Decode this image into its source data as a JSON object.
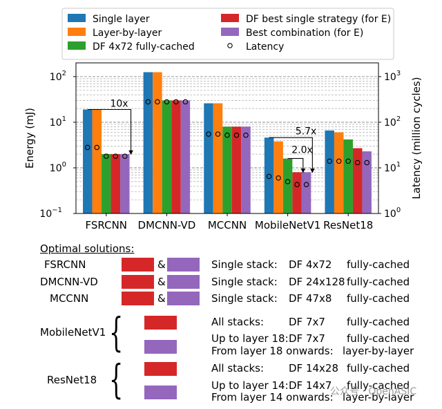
{
  "colors": {
    "single_layer": "#1f77b4",
    "layer_by_layer": "#ff7f0e",
    "df_fully_cached": "#2ca02c",
    "df_best_single": "#d62728",
    "best_combination": "#9467bd"
  },
  "chart_data": {
    "type": "bar",
    "title": "",
    "xlabel": "",
    "ylabel": "Energy (mJ)",
    "ylabel_right": "Latency (million cycles)",
    "yscale": "log",
    "ylim": [
      0.1,
      200
    ],
    "ylim_right": [
      1,
      2000
    ],
    "yticks": [
      "10^-1",
      "10^0",
      "10^1",
      "10^2"
    ],
    "yticks_right": [
      "10^0",
      "10^1",
      "10^2",
      "10^3"
    ],
    "categories": [
      "FSRCNN",
      "DMCNN-VD",
      "MCCNN",
      "MobileNetV1",
      "ResNet18"
    ],
    "series": [
      {
        "name": "Single layer",
        "color_key": "single_layer",
        "values": [
          19,
          125,
          26,
          4.6,
          6.6
        ]
      },
      {
        "name": "Layer-by-layer",
        "color_key": "layer_by_layer",
        "values": [
          19,
          125,
          26,
          3.8,
          6.0
        ]
      },
      {
        "name": "DF 4x72 fully-cached",
        "color_key": "df_fully_cached",
        "values": [
          2.0,
          30,
          8.0,
          1.6,
          4.2
        ]
      },
      {
        "name": "DF best single strategy (for E)",
        "color_key": "df_best_single",
        "values": [
          2.0,
          30,
          8.0,
          0.8,
          2.7
        ]
      },
      {
        "name": "Best combination (for E)",
        "color_key": "best_combination",
        "values": [
          2.0,
          30,
          8.0,
          0.8,
          2.3
        ]
      }
    ],
    "latency": {
      "name": "Latency",
      "values": [
        [
          28,
          28,
          18,
          18,
          18
        ],
        [
          280,
          280,
          280,
          280,
          280
        ],
        [
          55,
          55,
          52,
          52,
          52
        ],
        [
          6.5,
          6.0,
          5.0,
          4.3,
          4.3
        ],
        [
          14,
          14,
          14,
          13,
          13
        ]
      ]
    },
    "annotations": [
      {
        "text": "10x",
        "category": "FSRCNN"
      },
      {
        "text": "5.7x",
        "category": "MobileNetV1"
      },
      {
        "text": "2.0x",
        "category": "MobileNetV1"
      }
    ]
  },
  "optimal": {
    "heading": "Optimal solutions:",
    "amp": "&",
    "rows": [
      {
        "network": "FSRCNN",
        "label": "Single stack:",
        "tiling": "DF 4x72",
        "mode": "fully-cached"
      },
      {
        "network": "DMCNN-VD",
        "label": "Single stack:",
        "tiling": "DF 24x128",
        "mode": "fully-cached"
      },
      {
        "network": "MCCNN",
        "label": "Single stack:",
        "tiling": "DF 47x8",
        "mode": "fully-cached"
      }
    ],
    "mobilenet": {
      "network": "MobileNetV1",
      "l1": "All stacks:",
      "t1": "DF 7x7",
      "m1": "fully-cached",
      "l2": "Up to layer 18:",
      "t2": "DF 7x7",
      "m2": "fully-cached",
      "l3": "From layer 18 onwards:",
      "m3": "layer-by-layer"
    },
    "resnet": {
      "network": "ResNet18",
      "l1": "All stacks:",
      "t1": "DF 14x28",
      "m1": "fully-cached",
      "l2": "Up to layer 14:",
      "t2": "DF 14x7",
      "m2": "fully-cached",
      "l3": "From layer 14 onwards:",
      "m3": "layer-by-layer"
    }
  },
  "watermark": "公众号 · OpenASIC"
}
